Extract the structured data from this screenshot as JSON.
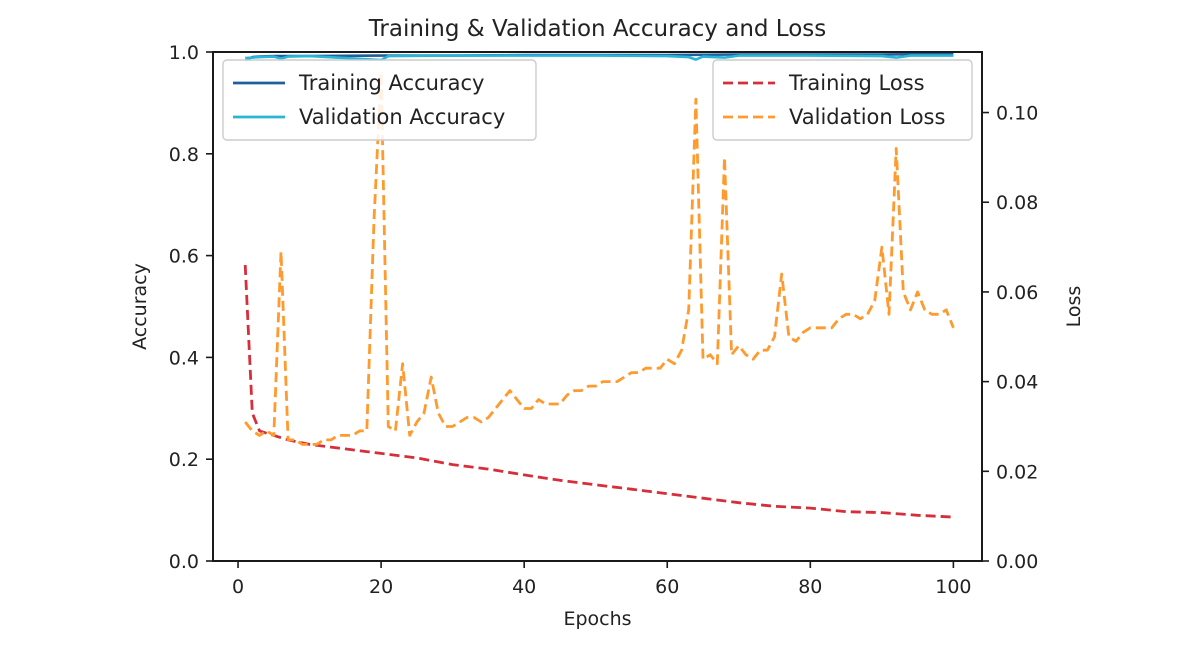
{
  "chart_data": {
    "type": "line",
    "title": "Training & Validation Accuracy and Loss",
    "xlabel": "Epochs",
    "ylabel_left": "Accuracy",
    "ylabel_right": "Loss",
    "xlim": [
      -3.5,
      104
    ],
    "ylim_left": [
      0,
      1.0
    ],
    "ylim_right": [
      0,
      0.1135
    ],
    "x_ticks": [
      0,
      20,
      40,
      60,
      80,
      100
    ],
    "x_tick_labels": [
      "0",
      "20",
      "40",
      "60",
      "80",
      "100"
    ],
    "left_ticks": [
      0.0,
      0.2,
      0.4,
      0.6,
      0.8,
      1.0
    ],
    "left_tick_labels": [
      "0.0",
      "0.2",
      "0.4",
      "0.6",
      "0.8",
      "1.0"
    ],
    "right_ticks": [
      0.0,
      0.02,
      0.04,
      0.06,
      0.08,
      0.1
    ],
    "right_tick_labels": [
      "0.00",
      "0.02",
      "0.04",
      "0.06",
      "0.08",
      "0.10"
    ],
    "legend_left": {
      "placement": "upper-left"
    },
    "legend_right": {
      "placement": "upper-right"
    },
    "grid": false,
    "series": [
      {
        "name": "Training Accuracy",
        "axis": "left",
        "color": "#1f5f9e",
        "style": "solid",
        "x": [
          1,
          2,
          3,
          5,
          10,
          20,
          30,
          40,
          50,
          60,
          70,
          80,
          90,
          100
        ],
        "y": [
          0.983,
          0.99,
          0.991,
          0.992,
          0.992,
          0.993,
          0.993,
          0.994,
          0.994,
          0.994,
          0.995,
          0.995,
          0.995,
          0.996
        ]
      },
      {
        "name": "Validation Accuracy",
        "axis": "left",
        "color": "#29b6d6",
        "style": "solid",
        "x": [
          1,
          3,
          5,
          6,
          7,
          10,
          20,
          21,
          30,
          40,
          50,
          60,
          63,
          64,
          65,
          68,
          70,
          80,
          90,
          92,
          94,
          100
        ],
        "y": [
          0.988,
          0.99,
          0.991,
          0.987,
          0.991,
          0.992,
          0.984,
          0.992,
          0.993,
          0.993,
          0.993,
          0.992,
          0.99,
          0.985,
          0.991,
          0.989,
          0.993,
          0.993,
          0.992,
          0.989,
          0.993,
          0.993
        ]
      },
      {
        "name": "Training Loss",
        "axis": "right",
        "color": "#d62f3a",
        "style": "dashed",
        "x": [
          1,
          2,
          3,
          5,
          7,
          10,
          15,
          20,
          25,
          30,
          35,
          40,
          45,
          50,
          55,
          60,
          65,
          70,
          75,
          80,
          85,
          90,
          95,
          100
        ],
        "y": [
          0.066,
          0.033,
          0.029,
          0.028,
          0.027,
          0.026,
          0.025,
          0.024,
          0.023,
          0.0215,
          0.0205,
          0.0192,
          0.018,
          0.017,
          0.016,
          0.015,
          0.014,
          0.013,
          0.0122,
          0.0118,
          0.011,
          0.0108,
          0.0102,
          0.0098
        ]
      },
      {
        "name": "Validation Loss",
        "axis": "right",
        "color": "#ff9a2e",
        "style": "dashed",
        "x": [
          1,
          2,
          3,
          4,
          5,
          6,
          7,
          8,
          9,
          10,
          11,
          12,
          13,
          14,
          15,
          16,
          17,
          18,
          19,
          20,
          21,
          22,
          23,
          24,
          25,
          26,
          27,
          28,
          29,
          30,
          31,
          32,
          33,
          34,
          35,
          36,
          37,
          38,
          39,
          40,
          41,
          42,
          43,
          44,
          45,
          46,
          47,
          48,
          49,
          50,
          51,
          52,
          53,
          54,
          55,
          56,
          57,
          58,
          59,
          60,
          61,
          62,
          63,
          64,
          65,
          66,
          67,
          68,
          69,
          70,
          71,
          72,
          73,
          74,
          75,
          76,
          77,
          78,
          79,
          80,
          81,
          82,
          83,
          84,
          85,
          86,
          87,
          88,
          89,
          90,
          91,
          92,
          93,
          94,
          95,
          96,
          97,
          98,
          99,
          100
        ],
        "y": [
          0.031,
          0.029,
          0.028,
          0.029,
          0.028,
          0.069,
          0.027,
          0.027,
          0.026,
          0.026,
          0.026,
          0.027,
          0.027,
          0.028,
          0.028,
          0.028,
          0.029,
          0.029,
          0.076,
          0.109,
          0.03,
          0.029,
          0.044,
          0.028,
          0.031,
          0.033,
          0.041,
          0.033,
          0.03,
          0.03,
          0.031,
          0.032,
          0.032,
          0.031,
          0.032,
          0.034,
          0.036,
          0.038,
          0.036,
          0.034,
          0.034,
          0.036,
          0.035,
          0.035,
          0.035,
          0.037,
          0.038,
          0.038,
          0.039,
          0.039,
          0.04,
          0.04,
          0.04,
          0.041,
          0.042,
          0.042,
          0.043,
          0.043,
          0.043,
          0.045,
          0.044,
          0.047,
          0.056,
          0.103,
          0.045,
          0.046,
          0.044,
          0.09,
          0.046,
          0.048,
          0.046,
          0.045,
          0.047,
          0.047,
          0.05,
          0.064,
          0.05,
          0.049,
          0.051,
          0.052,
          0.052,
          0.052,
          0.052,
          0.054,
          0.055,
          0.055,
          0.054,
          0.055,
          0.058,
          0.07,
          0.055,
          0.092,
          0.06,
          0.056,
          0.06,
          0.056,
          0.055,
          0.055,
          0.056,
          0.052
        ]
      }
    ]
  }
}
